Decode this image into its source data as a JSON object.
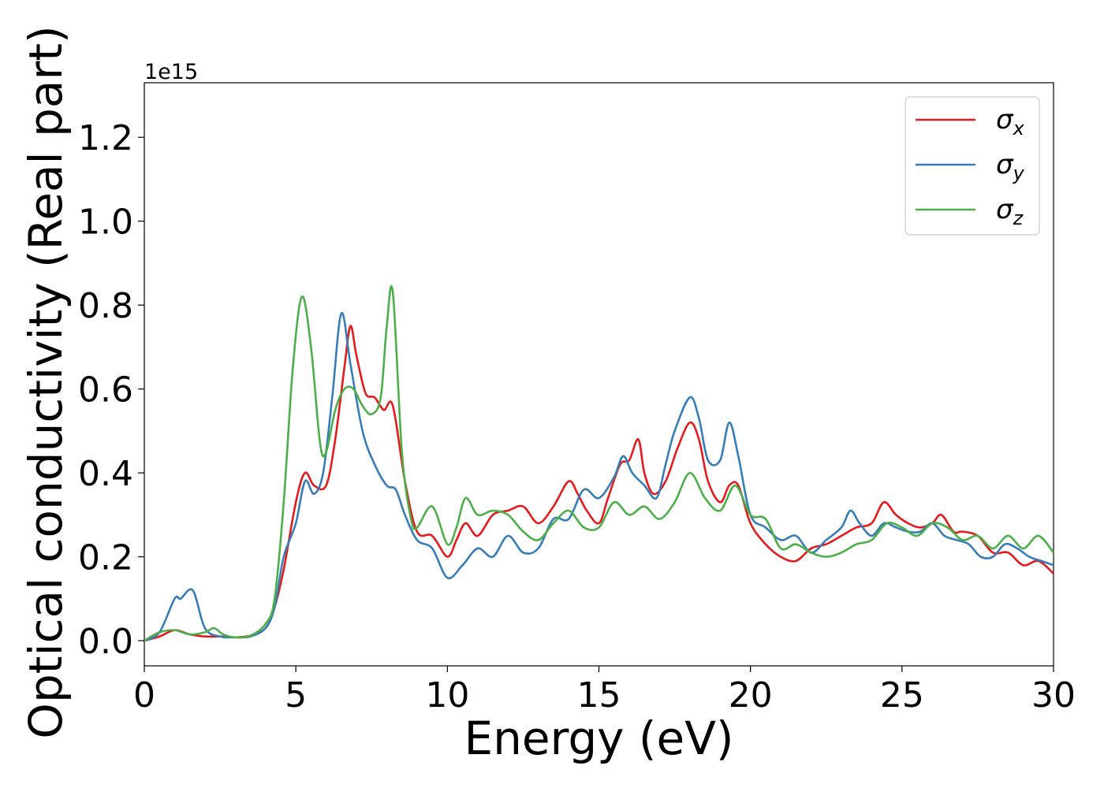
{
  "chart_data": {
    "type": "line",
    "xlabel": "Energy (eV)",
    "ylabel": "Optical conductivity (Real part)",
    "y_offset_label": "1e15",
    "xlim": [
      0,
      30
    ],
    "ylim": [
      -0.06,
      1.33
    ],
    "x_ticks": [
      0,
      5,
      10,
      15,
      20,
      25,
      30
    ],
    "x_tick_labels": [
      "0",
      "5",
      "10",
      "15",
      "20",
      "25",
      "30"
    ],
    "y_ticks": [
      0.0,
      0.2,
      0.4,
      0.6,
      0.8,
      1.0,
      1.2
    ],
    "y_tick_labels": [
      "0.0",
      "0.2",
      "0.4",
      "0.6",
      "0.8",
      "1.0",
      "1.2"
    ],
    "grid": false,
    "legend_position": "top-right",
    "series": [
      {
        "name": "σx",
        "legend_symbol": "σ",
        "legend_subscript": "x",
        "color": "#e41a1c",
        "x": [
          0,
          0.5,
          1.0,
          1.5,
          2.0,
          2.5,
          3.0,
          3.5,
          4.0,
          4.3,
          4.6,
          5.0,
          5.3,
          5.6,
          6.0,
          6.3,
          6.6,
          6.8,
          7.0,
          7.3,
          7.6,
          7.9,
          8.2,
          8.6,
          9.0,
          9.5,
          10.0,
          10.3,
          10.6,
          11.0,
          11.5,
          12.0,
          12.5,
          13.0,
          13.5,
          14.0,
          14.3,
          14.6,
          15.0,
          15.3,
          15.7,
          16.0,
          16.3,
          16.5,
          16.8,
          17.2,
          17.6,
          18.0,
          18.3,
          18.6,
          19.0,
          19.3,
          19.6,
          20.0,
          20.5,
          21.0,
          21.5,
          22.0,
          22.5,
          23.0,
          23.5,
          24.0,
          24.4,
          24.8,
          25.2,
          25.6,
          26.0,
          26.3,
          26.7,
          27.0,
          27.5,
          28.0,
          28.5,
          29.0,
          29.5,
          30.0
        ],
        "y": [
          0.0,
          0.01,
          0.025,
          0.015,
          0.01,
          0.01,
          0.008,
          0.012,
          0.03,
          0.08,
          0.17,
          0.33,
          0.4,
          0.37,
          0.37,
          0.48,
          0.65,
          0.75,
          0.68,
          0.59,
          0.58,
          0.55,
          0.56,
          0.38,
          0.26,
          0.25,
          0.2,
          0.24,
          0.28,
          0.25,
          0.3,
          0.31,
          0.32,
          0.28,
          0.32,
          0.38,
          0.35,
          0.31,
          0.28,
          0.34,
          0.42,
          0.43,
          0.48,
          0.4,
          0.35,
          0.38,
          0.46,
          0.52,
          0.48,
          0.38,
          0.33,
          0.37,
          0.37,
          0.28,
          0.23,
          0.2,
          0.19,
          0.22,
          0.23,
          0.25,
          0.27,
          0.28,
          0.33,
          0.3,
          0.28,
          0.27,
          0.28,
          0.3,
          0.26,
          0.26,
          0.25,
          0.21,
          0.21,
          0.18,
          0.19,
          0.16
        ]
      },
      {
        "name": "σy",
        "legend_symbol": "σ",
        "legend_subscript": "y",
        "color": "#377eb8",
        "x": [
          0,
          0.5,
          1.0,
          1.2,
          1.6,
          2.0,
          2.5,
          3.0,
          3.5,
          4.0,
          4.3,
          4.6,
          5.0,
          5.3,
          5.6,
          5.9,
          6.2,
          6.5,
          6.8,
          7.2,
          7.6,
          8.0,
          8.3,
          8.6,
          9.0,
          9.5,
          10.0,
          10.5,
          11.0,
          11.5,
          12.0,
          12.5,
          13.0,
          13.5,
          14.0,
          14.5,
          15.0,
          15.5,
          15.8,
          16.1,
          16.5,
          16.9,
          17.2,
          17.5,
          18.0,
          18.3,
          18.6,
          19.0,
          19.3,
          19.6,
          20.0,
          20.5,
          21.0,
          21.5,
          22.0,
          22.5,
          23.0,
          23.3,
          23.6,
          24.0,
          24.4,
          24.8,
          25.2,
          25.6,
          26.0,
          26.4,
          26.8,
          27.2,
          27.6,
          28.0,
          28.4,
          28.8,
          29.2,
          29.6,
          30.0
        ],
        "y": [
          0.0,
          0.02,
          0.1,
          0.1,
          0.12,
          0.03,
          0.01,
          0.008,
          0.01,
          0.03,
          0.08,
          0.2,
          0.28,
          0.38,
          0.35,
          0.4,
          0.58,
          0.78,
          0.66,
          0.5,
          0.42,
          0.37,
          0.36,
          0.3,
          0.24,
          0.22,
          0.15,
          0.18,
          0.22,
          0.2,
          0.25,
          0.21,
          0.22,
          0.29,
          0.29,
          0.36,
          0.34,
          0.39,
          0.44,
          0.4,
          0.37,
          0.34,
          0.42,
          0.5,
          0.58,
          0.53,
          0.43,
          0.43,
          0.52,
          0.44,
          0.3,
          0.27,
          0.24,
          0.25,
          0.21,
          0.24,
          0.27,
          0.31,
          0.28,
          0.25,
          0.28,
          0.27,
          0.26,
          0.26,
          0.28,
          0.25,
          0.24,
          0.23,
          0.2,
          0.2,
          0.23,
          0.22,
          0.2,
          0.19,
          0.18
        ]
      },
      {
        "name": "σz",
        "legend_symbol": "σ",
        "legend_subscript": "z",
        "color": "#4daf4a",
        "x": [
          0,
          0.5,
          1.0,
          1.5,
          2.0,
          2.3,
          2.6,
          3.0,
          3.5,
          4.0,
          4.3,
          4.6,
          4.9,
          5.2,
          5.5,
          5.8,
          6.0,
          6.3,
          6.6,
          6.9,
          7.2,
          7.5,
          7.8,
          8.0,
          8.2,
          8.5,
          8.8,
          9.0,
          9.5,
          10.0,
          10.3,
          10.6,
          11.0,
          11.5,
          12.0,
          12.5,
          13.0,
          13.5,
          14.0,
          14.5,
          15.0,
          15.5,
          16.0,
          16.5,
          17.0,
          17.5,
          18.0,
          18.5,
          19.0,
          19.5,
          20.0,
          20.5,
          21.0,
          21.5,
          22.0,
          22.5,
          23.0,
          23.5,
          24.0,
          24.5,
          25.0,
          25.5,
          26.0,
          26.5,
          27.0,
          27.5,
          28.0,
          28.5,
          29.0,
          29.5,
          30.0
        ],
        "y": [
          0.0,
          0.02,
          0.025,
          0.015,
          0.02,
          0.03,
          0.015,
          0.008,
          0.012,
          0.04,
          0.1,
          0.33,
          0.65,
          0.82,
          0.7,
          0.47,
          0.45,
          0.55,
          0.6,
          0.6,
          0.56,
          0.54,
          0.58,
          0.75,
          0.83,
          0.45,
          0.29,
          0.27,
          0.32,
          0.23,
          0.27,
          0.34,
          0.3,
          0.31,
          0.3,
          0.26,
          0.24,
          0.28,
          0.31,
          0.27,
          0.27,
          0.33,
          0.3,
          0.32,
          0.29,
          0.33,
          0.4,
          0.34,
          0.31,
          0.37,
          0.3,
          0.29,
          0.22,
          0.23,
          0.21,
          0.2,
          0.21,
          0.23,
          0.24,
          0.28,
          0.27,
          0.25,
          0.28,
          0.27,
          0.24,
          0.25,
          0.22,
          0.25,
          0.22,
          0.25,
          0.21
        ]
      }
    ]
  }
}
